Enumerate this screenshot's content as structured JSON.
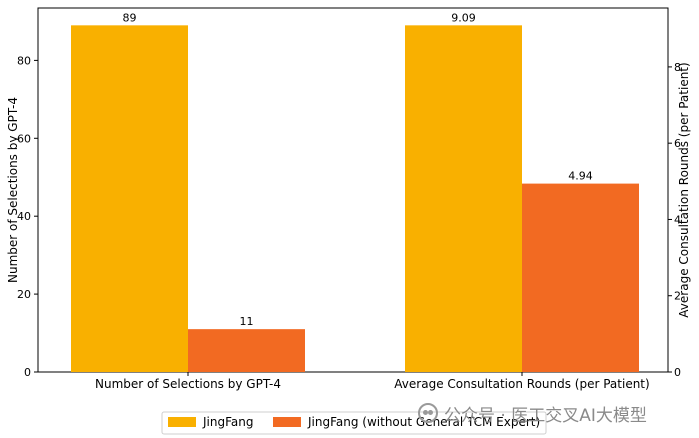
{
  "chart_data": {
    "type": "bar",
    "categories": [
      "Number of Selections by GPT-4",
      "Average Consultation Rounds (per Patient)"
    ],
    "left_axis": {
      "label": "Number of Selections by GPT-4",
      "ylim": [
        0,
        93.45
      ],
      "ticks": [
        0,
        20,
        40,
        60,
        80
      ]
    },
    "right_axis": {
      "label": "Average Consultation Rounds (per Patient)",
      "ylim": [
        0,
        9.5445
      ],
      "ticks": [
        0,
        2,
        4,
        6,
        8
      ]
    },
    "series": [
      {
        "name": "JingFang",
        "color": "#F9B000",
        "values": [
          89,
          9.09
        ],
        "labels": [
          "89",
          "9.09"
        ],
        "axis": [
          "left",
          "right"
        ]
      },
      {
        "name": "JingFang (without General TCM Expert)",
        "color": "#F26A22",
        "values": [
          11,
          4.94
        ],
        "labels": [
          "11",
          "4.94"
        ],
        "axis": [
          "left",
          "right"
        ]
      }
    ],
    "legend_position": "bottom-center",
    "grid": false
  },
  "watermark": "公众号 · 医工交叉AI大模型"
}
